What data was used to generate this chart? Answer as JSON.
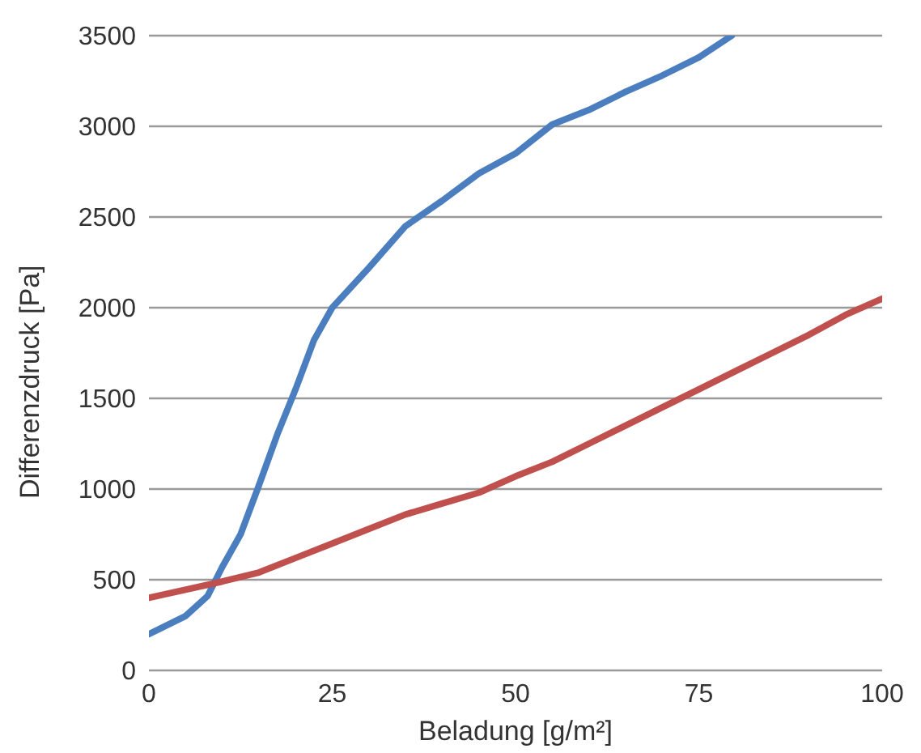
{
  "chart_data": {
    "type": "line",
    "xlabel": "Beladung [g/m²]",
    "ylabel": "Differenzdruck [Pa]",
    "series": [
      {
        "color": "#4a7ebf",
        "x": [
          0,
          5,
          8,
          10,
          12.5,
          15,
          17.5,
          20,
          22.5,
          25,
          30,
          35,
          40,
          45,
          50,
          55,
          60,
          65,
          70,
          75,
          79.5
        ],
        "values": [
          200,
          300,
          410,
          570,
          750,
          1020,
          1300,
          1550,
          1820,
          2000,
          2220,
          2450,
          2590,
          2740,
          2850,
          3010,
          3090,
          3190,
          3280,
          3380,
          3500
        ]
      },
      {
        "color": "#c0504d",
        "x": [
          0,
          10,
          15,
          20,
          25,
          30,
          35,
          40,
          45,
          50,
          55,
          60,
          65,
          70,
          75,
          80,
          85,
          90,
          95,
          100
        ],
        "values": [
          400,
          490,
          540,
          620,
          700,
          780,
          860,
          920,
          980,
          1070,
          1150,
          1250,
          1350,
          1450,
          1550,
          1650,
          1750,
          1850,
          1960,
          2050
        ]
      }
    ],
    "xlim": [
      0,
      100
    ],
    "xticks": [
      0,
      25,
      50,
      75,
      100
    ],
    "ylim": [
      0,
      3500
    ],
    "yticks": [
      0,
      500,
      1000,
      1500,
      2000,
      2500,
      3000,
      3500
    ],
    "grid": "y",
    "marker": "none",
    "line_style": "solid",
    "legend": false
  }
}
